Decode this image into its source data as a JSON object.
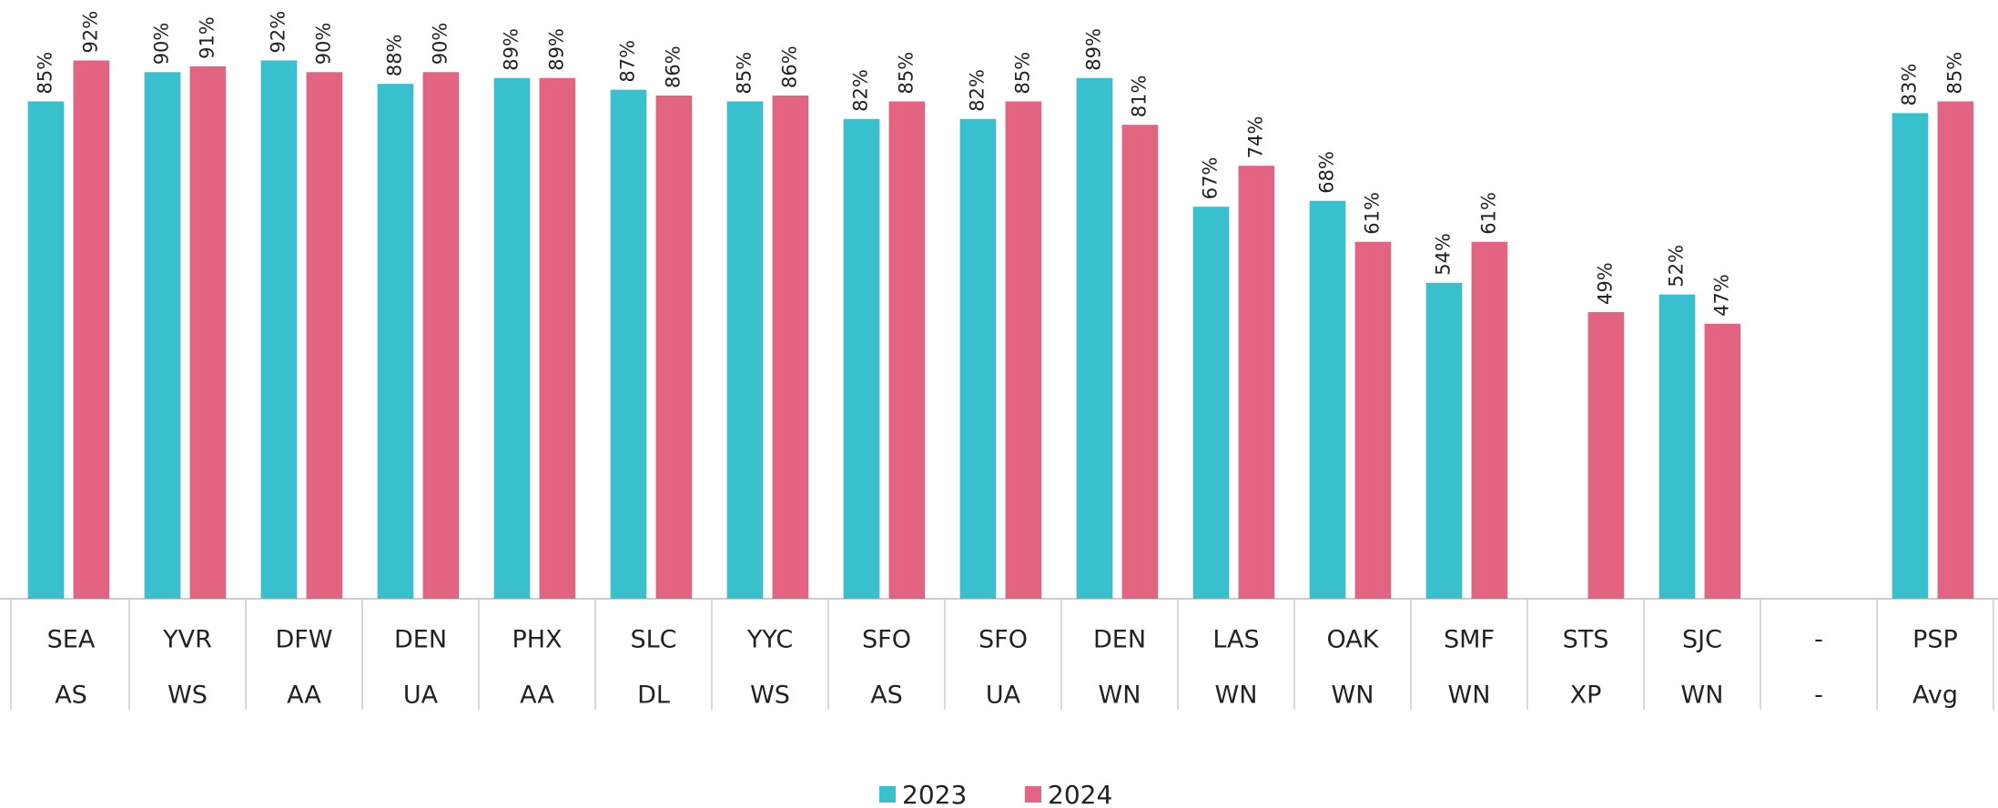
{
  "chart_data": {
    "type": "bar",
    "categories": [
      [
        "SEA",
        "AS"
      ],
      [
        "YVR",
        "WS"
      ],
      [
        "DFW",
        "AA"
      ],
      [
        "DEN",
        "UA"
      ],
      [
        "PHX",
        "AA"
      ],
      [
        "SLC",
        "DL"
      ],
      [
        "YYC",
        "WS"
      ],
      [
        "SFO",
        "AS"
      ],
      [
        "SFO",
        "UA"
      ],
      [
        "DEN",
        "WN"
      ],
      [
        "LAS",
        "WN"
      ],
      [
        "OAK",
        "WN"
      ],
      [
        "SMF",
        "WN"
      ],
      [
        "STS",
        "XP"
      ],
      [
        "SJC",
        "WN"
      ],
      [
        "-",
        "-"
      ],
      [
        "PSP",
        "Avg"
      ]
    ],
    "series": [
      {
        "name": "2023",
        "color": "#38c0cf",
        "values": [
          85,
          90,
          92,
          88,
          89,
          87,
          85,
          82,
          82,
          89,
          67,
          68,
          54,
          null,
          52,
          null,
          83
        ],
        "value_labels": [
          "85%",
          "90%",
          "92%",
          "88%",
          "89%",
          "87%",
          "85%",
          "82%",
          "82%",
          "89%",
          "67%",
          "68%",
          "54%",
          null,
          "52%",
          null,
          "83%"
        ]
      },
      {
        "name": "2024",
        "color": "#e36383",
        "values": [
          92,
          91,
          90,
          90,
          89,
          86,
          86,
          85,
          85,
          81,
          74,
          61,
          61,
          49,
          47,
          null,
          85
        ],
        "value_labels": [
          "92%",
          "91%",
          "90%",
          "90%",
          "89%",
          "86%",
          "86%",
          "85%",
          "85%",
          "81%",
          "74%",
          "61%",
          "61%",
          "49%",
          "47%",
          null,
          "85%"
        ]
      }
    ],
    "ylim": [
      0,
      100
    ],
    "legend": "bottom"
  }
}
